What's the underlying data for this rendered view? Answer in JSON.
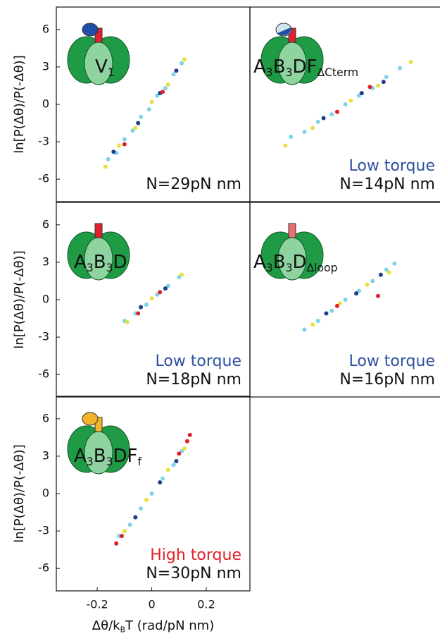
{
  "chart_data": [
    {
      "type": "scatter",
      "annotation": "N=29pN nm",
      "label_parts": [
        {
          "text": "V"
        },
        {
          "sub": "1"
        }
      ],
      "y_label": "ln[P(Δθ)/P(-Δθ)]",
      "xlim": [
        -0.35,
        0.36
      ],
      "ylim": [
        -7.8,
        7.8
      ],
      "yticks": [
        6,
        3,
        0,
        -3,
        -6
      ],
      "series": [
        {
          "color": "#7fd3e8",
          "x": [
            -0.16,
            -0.13,
            -0.1,
            -0.07,
            -0.04,
            -0.01,
            0.02,
            0.05,
            0.08,
            0.11
          ],
          "values": [
            -4.4,
            -3.9,
            -2.8,
            -2.1,
            -1.0,
            -0.4,
            0.7,
            1.3,
            2.4,
            3.3
          ]
        },
        {
          "color": "#e8e040",
          "x": [
            -0.17,
            -0.12,
            -0.06,
            0,
            0.06,
            0.12
          ],
          "values": [
            -5.0,
            -3.3,
            -1.9,
            0.2,
            1.6,
            3.6
          ]
        },
        {
          "color": "#1f3d8c",
          "x": [
            -0.14,
            -0.05,
            0.03,
            0.09
          ],
          "values": [
            -3.8,
            -1.5,
            0.9,
            2.7
          ]
        },
        {
          "color": "#e0202a",
          "x": [
            -0.1,
            0.04
          ],
          "values": [
            -3.2,
            1.0
          ]
        }
      ]
    },
    {
      "type": "scatter",
      "annotation": "N=14pN nm",
      "torque_label": "Low torque",
      "torque_color": "#2e4fa0",
      "label_parts": [
        {
          "text": "A"
        },
        {
          "sub": "3"
        },
        {
          "text": "B"
        },
        {
          "sub": "3"
        },
        {
          "text": "DF"
        },
        {
          "sub": "ΔCterm"
        }
      ],
      "xlim": [
        -0.35,
        0.36
      ],
      "ylim": [
        -7.8,
        7.8
      ],
      "series": [
        {
          "color": "#7fd3e8",
          "x": [
            -0.2,
            -0.15,
            -0.1,
            -0.05,
            0,
            0.05,
            0.1,
            0.15,
            0.2
          ],
          "values": [
            -2.6,
            -2.2,
            -1.4,
            -0.8,
            0,
            0.7,
            1.3,
            2.2,
            2.9
          ]
        },
        {
          "color": "#e8e040",
          "x": [
            -0.22,
            -0.12,
            0.02,
            0.12,
            0.24
          ],
          "values": [
            -3.3,
            -1.9,
            0.3,
            1.5,
            3.4
          ]
        },
        {
          "color": "#1f3d8c",
          "x": [
            -0.08,
            0.06,
            0.14
          ],
          "values": [
            -1.1,
            0.9,
            1.8
          ]
        },
        {
          "color": "#e0202a",
          "x": [
            -0.03,
            0.09
          ],
          "values": [
            -0.6,
            1.4
          ]
        }
      ]
    },
    {
      "type": "scatter",
      "annotation": "N=18pN nm",
      "torque_label": "Low torque",
      "torque_color": "#2e4fa0",
      "label_parts": [
        {
          "text": "A"
        },
        {
          "sub": "3"
        },
        {
          "text": "B"
        },
        {
          "sub": "3"
        },
        {
          "text": "D"
        }
      ],
      "y_label": "ln[P(Δθ)/P(-Δθ)]",
      "xlim": [
        -0.35,
        0.36
      ],
      "ylim": [
        -7.8,
        7.8
      ],
      "yticks": [
        6,
        3,
        0,
        -3,
        -6
      ],
      "series": [
        {
          "color": "#7fd3e8",
          "x": [
            -0.1,
            -0.06,
            -0.02,
            0.02,
            0.06,
            0.1
          ],
          "values": [
            -1.7,
            -1.1,
            -0.4,
            0.4,
            1.1,
            1.8
          ]
        },
        {
          "color": "#e8e040",
          "x": [
            -0.09,
            0,
            0.11
          ],
          "values": [
            -1.8,
            0.1,
            2.0
          ]
        },
        {
          "color": "#1f3d8c",
          "x": [
            -0.04,
            0.05
          ],
          "values": [
            -0.6,
            0.9
          ]
        },
        {
          "color": "#e0202a",
          "x": [
            -0.05,
            0.03
          ],
          "values": [
            -1.1,
            0.6
          ]
        }
      ]
    },
    {
      "type": "scatter",
      "annotation": "N=16pN nm",
      "torque_label": "Low torque",
      "torque_color": "#2e4fa0",
      "label_parts": [
        {
          "text": "A"
        },
        {
          "sub": "3"
        },
        {
          "text": "B"
        },
        {
          "sub": "3"
        },
        {
          "text": "D"
        },
        {
          "sub": "Δloop"
        }
      ],
      "xlim": [
        -0.35,
        0.36
      ],
      "ylim": [
        -7.8,
        7.8
      ],
      "series": [
        {
          "color": "#7fd3e8",
          "x": [
            -0.15,
            -0.1,
            -0.05,
            0,
            0.05,
            0.1,
            0.15,
            0.18
          ],
          "values": [
            -2.4,
            -1.7,
            -0.9,
            0,
            0.7,
            1.5,
            2.4,
            2.9
          ]
        },
        {
          "color": "#e8e040",
          "x": [
            -0.12,
            -0.02,
            0.08,
            0.16
          ],
          "values": [
            -2.0,
            -0.3,
            1.2,
            2.2
          ]
        },
        {
          "color": "#1f3d8c",
          "x": [
            -0.07,
            0.04,
            0.13
          ],
          "values": [
            -1.1,
            0.5,
            2.0
          ]
        },
        {
          "color": "#e0202a",
          "x": [
            -0.03,
            0.12
          ],
          "values": [
            -0.5,
            0.3
          ]
        }
      ]
    },
    {
      "type": "scatter",
      "annotation": "N=30pN nm",
      "torque_label": "High torque",
      "torque_color": "#e0202a",
      "label_parts": [
        {
          "text": "A"
        },
        {
          "sub": "3"
        },
        {
          "text": "B"
        },
        {
          "sub": "3"
        },
        {
          "text": "DF"
        },
        {
          "sub": "f"
        }
      ],
      "y_label": "ln[P(Δθ)/P(-Δθ)]",
      "x_label_parts": [
        {
          "text": "Δθ/k"
        },
        {
          "sub": "B"
        },
        {
          "text": "T (rad/pN nm)"
        }
      ],
      "xlim": [
        -0.35,
        0.36
      ],
      "ylim": [
        -7.8,
        7.8
      ],
      "yticks": [
        6,
        3,
        0,
        -3,
        -6
      ],
      "xticks": [
        -0.2,
        0,
        0.2
      ],
      "series": [
        {
          "color": "#7fd3e8",
          "x": [
            -0.12,
            -0.08,
            -0.04,
            0,
            0.04,
            0.08,
            0.11
          ],
          "values": [
            -3.4,
            -2.5,
            -1.2,
            0,
            1.2,
            2.3,
            3.4
          ]
        },
        {
          "color": "#e8e040",
          "x": [
            -0.1,
            -0.02,
            0.06,
            0.12
          ],
          "values": [
            -3.0,
            -0.5,
            1.9,
            3.6
          ]
        },
        {
          "color": "#1f3d8c",
          "x": [
            -0.06,
            0.03,
            0.09
          ],
          "values": [
            -1.9,
            0.9,
            2.6
          ]
        },
        {
          "color": "#e0202a",
          "x": [
            -0.13,
            -0.11,
            0.1,
            0.13,
            0.14
          ],
          "values": [
            -4.0,
            -3.4,
            3.2,
            4.2,
            4.7
          ]
        }
      ]
    }
  ]
}
